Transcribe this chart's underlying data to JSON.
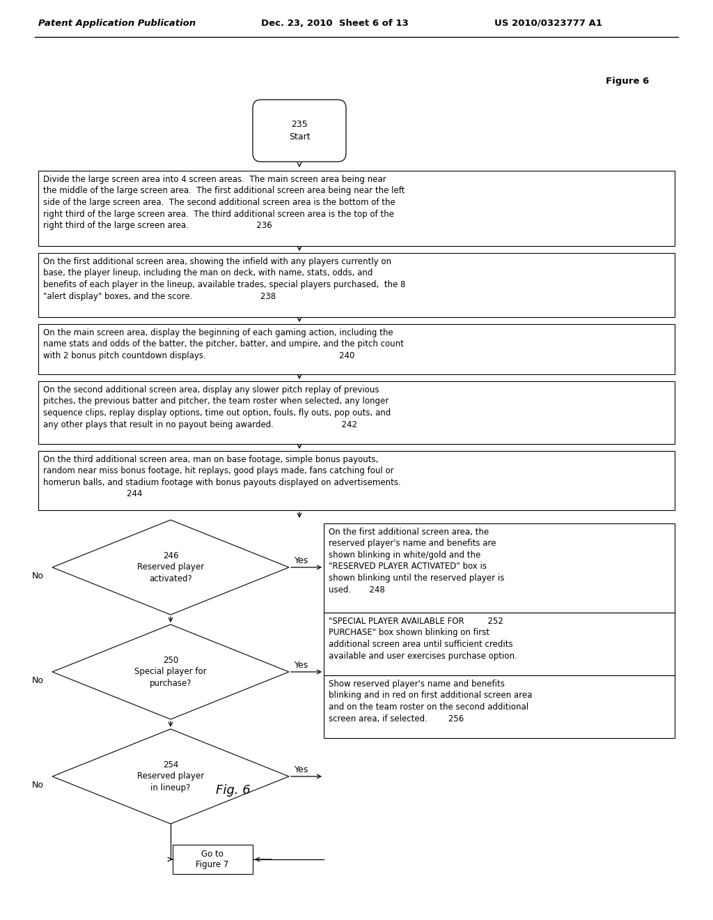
{
  "header_left": "Patent Application Publication",
  "header_mid": "Dec. 23, 2010  Sheet 6 of 13",
  "header_right": "US 2010/0323777 A1",
  "figure_label": "Figure 6",
  "fig_caption": "Fig. 6",
  "bg_color": "#ffffff",
  "box_color": "#ffffff",
  "box_edge": "#000000",
  "text_color": "#000000",
  "arrow_color": "#000000",
  "box236_text": "Divide the large screen area into 4 screen areas.  The main screen area being near\nthe middle of the large screen area.  The first additional screen area being near the left\nside of the large screen area.  The second additional screen area is the bottom of the\nright third of the large screen area.  The third additional screen area is the top of the\nright third of the large screen area.                          236",
  "box238_text": "On the first additional screen area, showing the infield with any players currently on\nbase, the player lineup, including the man on deck, with name, stats, odds, and\nbenefits of each player in the lineup, available trades, special players purchased,  the 8\n\"alert display\" boxes, and the score.                          238",
  "box240_text": "On the main screen area, display the beginning of each gaming action, including the\nname stats and odds of the batter, the pitcher, batter, and umpire, and the pitch count\nwith 2 bonus pitch countdown displays.                                                   240",
  "box242_text": "On the second additional screen area, display any slower pitch replay of previous\npitches, the previous batter and pitcher, the team roster when selected, any longer\nsequence clips, replay display options, time out option, fouls, fly outs, pop outs, and\nany other plays that result in no payout being awarded.                          242",
  "box244_text": "On the third additional screen area, man on base footage, simple bonus payouts,\nrandom near miss bonus footage, hit replays, good plays made, fans catching foul or\nhomerun balls, and stadium footage with bonus payouts displayed on advertisements.\n                                244",
  "d246_text": "246\nReserved player\nactivated?",
  "d250_text": "250\nSpecial player for\npurchase?",
  "d254_text": "254\nReserved player\nin lineup?",
  "rbox248_text": "On the first additional screen area, the\nreserved player's name and benefits are\nshown blinking in white/gold and the\n\"RESERVED PLAYER ACTIVATED\" box is\nshown blinking until the reserved player is\nused.       248",
  "rbox252_text": "\"SPECIAL PLAYER AVAILABLE FOR         252\nPURCHASE\" box shown blinking on first\nadditional screen area until sufficient credits\navailable and user exercises purchase option.",
  "rbox256_text": "Show reserved player's name and benefits\nblinking and in red on first additional screen area\nand on the team roster on the second additional\nscreen area, if selected.        256",
  "goto_text": "Go to\nFigure 7"
}
